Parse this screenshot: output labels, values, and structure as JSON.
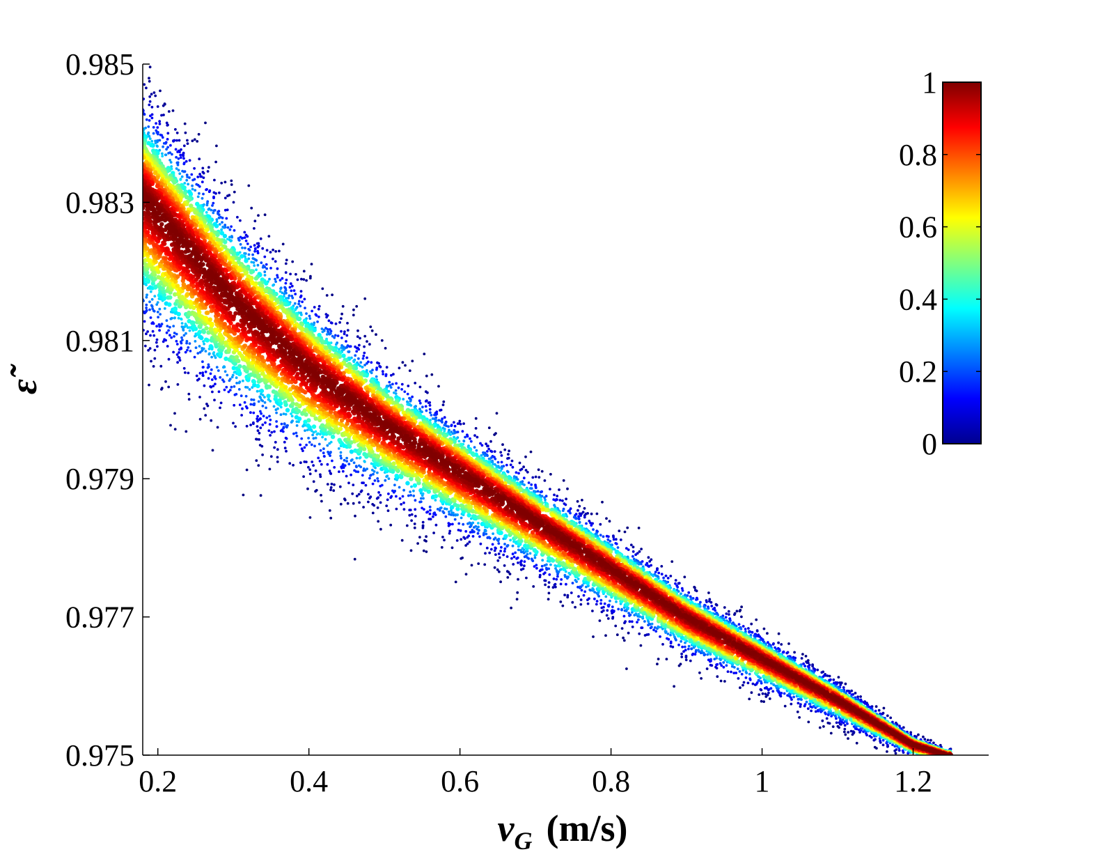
{
  "chart_data": {
    "type": "scatter",
    "title": "",
    "xlabel_var": "v",
    "xlabel_sub": "G",
    "xlabel_unit": "(m/s)",
    "ylabel": "ε̃",
    "xlim": [
      0.18,
      1.3
    ],
    "ylim": [
      0.975,
      0.985
    ],
    "x_ticks": [
      0.2,
      0.4,
      0.6,
      0.8,
      1.0,
      1.2
    ],
    "x_tick_labels": [
      "0.2",
      "0.4",
      "0.6",
      "0.8",
      "1",
      "1.2"
    ],
    "y_ticks": [
      0.975,
      0.977,
      0.979,
      0.981,
      0.983,
      0.985
    ],
    "y_tick_labels": [
      "0.975",
      "0.977",
      "0.979",
      "0.981",
      "0.983",
      "0.985"
    ],
    "grid": false,
    "colormap": "jet",
    "colorbar": {
      "range": [
        0,
        1
      ],
      "ticks": [
        0,
        0.2,
        0.4,
        0.6,
        0.8,
        1
      ],
      "tick_labels": [
        "0",
        "0.2",
        "0.4",
        "0.6",
        "0.8",
        "1"
      ],
      "placement": "top-right inside axes"
    },
    "trend": {
      "description": "dense band, normalized point density colored 0–1",
      "ridge": [
        {
          "x": 0.18,
          "y": 0.9831
        },
        {
          "x": 0.3,
          "y": 0.9816
        },
        {
          "x": 0.4,
          "y": 0.9806
        },
        {
          "x": 0.5,
          "y": 0.9798
        },
        {
          "x": 0.6,
          "y": 0.9791
        },
        {
          "x": 0.7,
          "y": 0.9784
        },
        {
          "x": 0.8,
          "y": 0.9777
        },
        {
          "x": 0.9,
          "y": 0.977
        },
        {
          "x": 1.0,
          "y": 0.9764
        },
        {
          "x": 1.1,
          "y": 0.9758
        },
        {
          "x": 1.2,
          "y": 0.97515
        },
        {
          "x": 1.245,
          "y": 0.975
        }
      ],
      "spread_y": [
        {
          "x": 0.18,
          "value": 0.0018
        },
        {
          "x": 0.3,
          "value": 0.0015
        },
        {
          "x": 0.5,
          "value": 0.001
        },
        {
          "x": 0.7,
          "value": 0.0007
        },
        {
          "x": 0.9,
          "value": 0.0005
        },
        {
          "x": 1.1,
          "value": 0.0003
        },
        {
          "x": 1.245,
          "value": 0.0001
        }
      ],
      "x_range": [
        0.18,
        1.25
      ],
      "point_count": 14000
    }
  }
}
